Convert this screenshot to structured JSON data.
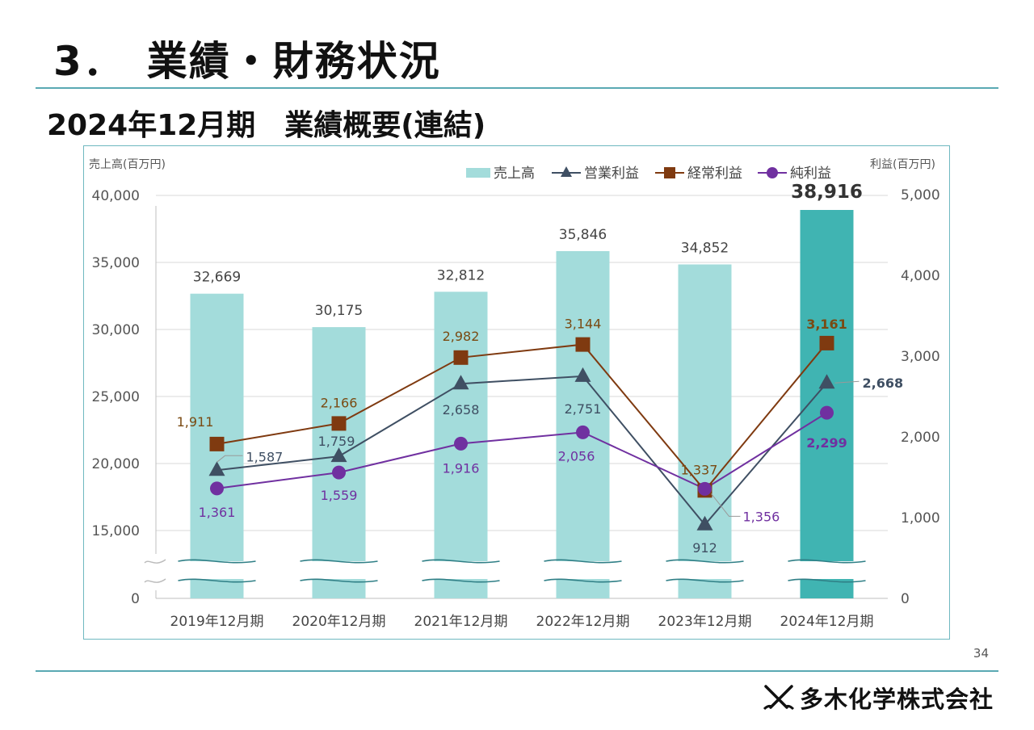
{
  "page": {
    "section_title": "3．　業績・財務状況",
    "subtitle": "2024年12月期　業績概要(連結)",
    "page_number": "34",
    "company": "多木化学株式会社"
  },
  "colors": {
    "accent_line": "#5aa9b3",
    "bar": "#a3dcdb",
    "bar_highlight": "#40b4b2",
    "operating": "#3f4f63",
    "ordinary": "#7f3a10",
    "net": "#7030a0",
    "label_ordinary": "#7a4a12"
  },
  "chart_data": {
    "type": "bar",
    "y_left_label": "売上高(百万円)",
    "y_right_label": "利益(百万円)",
    "y_left_ticks": [
      "0",
      "15,000",
      "20,000",
      "25,000",
      "30,000",
      "35,000",
      "40,000"
    ],
    "y_right_ticks": [
      "0",
      "1,000",
      "2,000",
      "3,000",
      "4,000",
      "5,000"
    ],
    "ylim_left_broken": [
      0,
      15000,
      40000
    ],
    "ylim_right": [
      0,
      5000
    ],
    "categories": [
      "2019年12月期",
      "2020年12月期",
      "2021年12月期",
      "2022年12月期",
      "2023年12月期",
      "2024年12月期"
    ],
    "series": [
      {
        "name": "売上高",
        "type": "bar",
        "axis": "left",
        "values": [
          32669,
          30175,
          32812,
          35846,
          34852,
          38916
        ],
        "labels": [
          "32,669",
          "30,175",
          "32,812",
          "35,846",
          "34,852",
          "38,916"
        ]
      },
      {
        "name": "営業利益",
        "type": "line",
        "axis": "right",
        "marker": "triangle",
        "values": [
          1587,
          1759,
          2658,
          2751,
          912,
          2668
        ],
        "labels": [
          "1,587",
          "1,759",
          "2,658",
          "2,751",
          "912",
          "2,668"
        ]
      },
      {
        "name": "経常利益",
        "type": "line",
        "axis": "right",
        "marker": "square",
        "values": [
          1911,
          2166,
          2982,
          3144,
          1337,
          3161
        ],
        "labels": [
          "1,911",
          "2,166",
          "2,982",
          "3,144",
          "1,337",
          "3,161"
        ]
      },
      {
        "name": "純利益",
        "type": "line",
        "axis": "right",
        "marker": "circle",
        "values": [
          1361,
          1559,
          1916,
          2056,
          1356,
          2299
        ],
        "labels": [
          "1,361",
          "1,559",
          "1,916",
          "2,056",
          "1,356",
          "2,299"
        ]
      }
    ],
    "legend_position": "top-right",
    "grid": true
  }
}
